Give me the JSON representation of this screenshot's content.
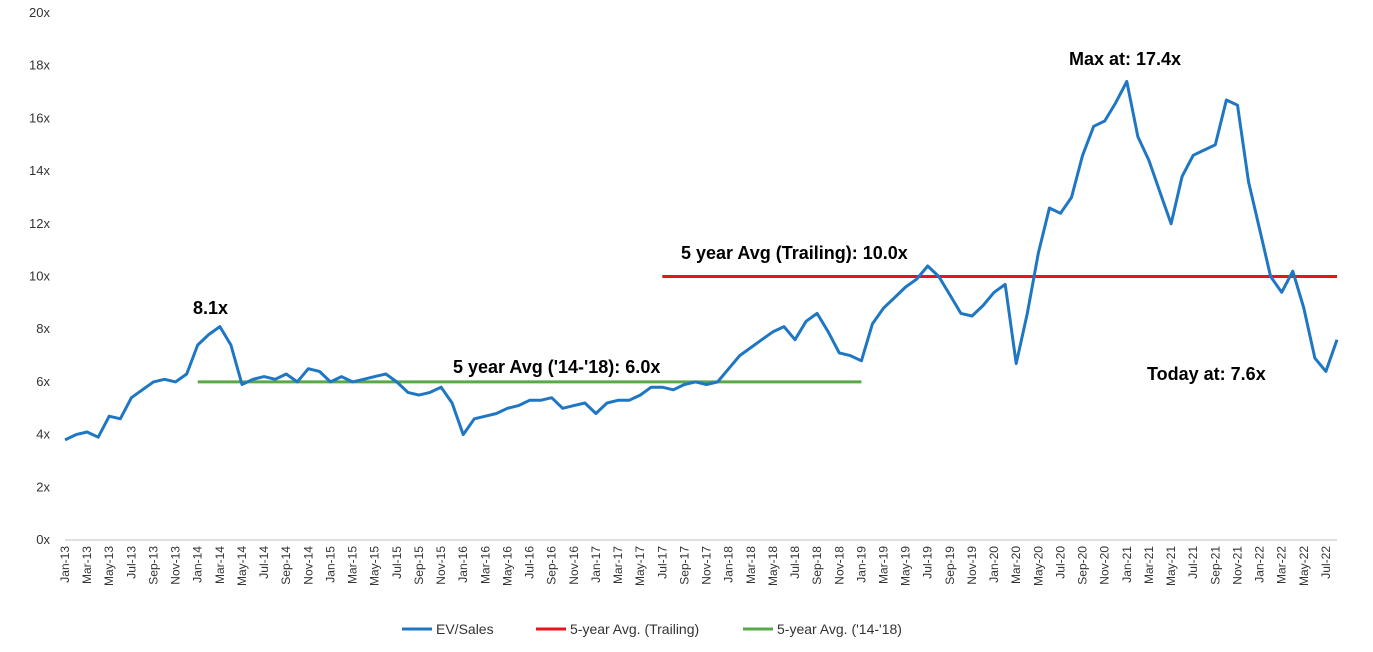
{
  "colors": {
    "ev_sales": "#1f77c4",
    "trailing": "#e8131b",
    "avg_14_18": "#5aa84a"
  },
  "chart_data": {
    "type": "line",
    "ylim": [
      0,
      20
    ],
    "yticks": [
      "0x",
      "2x",
      "4x",
      "6x",
      "8x",
      "10x",
      "12x",
      "14x",
      "16x",
      "18x",
      "20x"
    ],
    "x_start": "2013-01",
    "x_end": "2022-08",
    "xticks": [
      "Jan-13",
      "Mar-13",
      "May-13",
      "Jul-13",
      "Sep-13",
      "Nov-13",
      "Jan-14",
      "Mar-14",
      "May-14",
      "Jul-14",
      "Sep-14",
      "Nov-14",
      "Jan-15",
      "Mar-15",
      "May-15",
      "Jul-15",
      "Sep-15",
      "Nov-15",
      "Jan-16",
      "Mar-16",
      "May-16",
      "Jul-16",
      "Sep-16",
      "Nov-16",
      "Jan-17",
      "Mar-17",
      "May-17",
      "Jul-17",
      "Sep-17",
      "Nov-17",
      "Jan-18",
      "Mar-18",
      "May-18",
      "Jul-18",
      "Sep-18",
      "Nov-18",
      "Jan-19",
      "Mar-19",
      "May-19",
      "Jul-19",
      "Sep-19",
      "Nov-19",
      "Jan-20",
      "Mar-20",
      "May-20",
      "Jul-20",
      "Sep-20",
      "Nov-20",
      "Jan-21",
      "Mar-21",
      "May-21",
      "Jul-21",
      "Sep-21",
      "Nov-21",
      "Jan-22",
      "Mar-22",
      "May-22",
      "Jul-22"
    ],
    "series": [
      {
        "name": "EV/Sales",
        "x": [
          "2013-01",
          "2013-02",
          "2013-03",
          "2013-04",
          "2013-05",
          "2013-06",
          "2013-07",
          "2013-08",
          "2013-09",
          "2013-10",
          "2013-11",
          "2013-12",
          "2014-01",
          "2014-02",
          "2014-03",
          "2014-04",
          "2014-05",
          "2014-06",
          "2014-07",
          "2014-08",
          "2014-09",
          "2014-10",
          "2014-11",
          "2014-12",
          "2015-01",
          "2015-02",
          "2015-03",
          "2015-04",
          "2015-05",
          "2015-06",
          "2015-07",
          "2015-08",
          "2015-09",
          "2015-10",
          "2015-11",
          "2015-12",
          "2016-01",
          "2016-02",
          "2016-03",
          "2016-04",
          "2016-05",
          "2016-06",
          "2016-07",
          "2016-08",
          "2016-09",
          "2016-10",
          "2016-11",
          "2016-12",
          "2017-01",
          "2017-02",
          "2017-03",
          "2017-04",
          "2017-05",
          "2017-06",
          "2017-07",
          "2017-08",
          "2017-09",
          "2017-10",
          "2017-11",
          "2017-12",
          "2018-01",
          "2018-02",
          "2018-03",
          "2018-04",
          "2018-05",
          "2018-06",
          "2018-07",
          "2018-08",
          "2018-09",
          "2018-10",
          "2018-11",
          "2018-12",
          "2019-01",
          "2019-02",
          "2019-03",
          "2019-04",
          "2019-05",
          "2019-06",
          "2019-07",
          "2019-08",
          "2019-09",
          "2019-10",
          "2019-11",
          "2019-12",
          "2020-01",
          "2020-02",
          "2020-03",
          "2020-04",
          "2020-05",
          "2020-06",
          "2020-07",
          "2020-08",
          "2020-09",
          "2020-10",
          "2020-11",
          "2020-12",
          "2021-01",
          "2021-02",
          "2021-03",
          "2021-04",
          "2021-05",
          "2021-06",
          "2021-07",
          "2021-08",
          "2021-09",
          "2021-10",
          "2021-11",
          "2021-12",
          "2022-01",
          "2022-02",
          "2022-03",
          "2022-04",
          "2022-05",
          "2022-06",
          "2022-07",
          "2022-08"
        ],
        "values": [
          3.8,
          4.0,
          4.1,
          3.9,
          4.7,
          4.6,
          5.4,
          5.7,
          6.0,
          6.1,
          6.0,
          6.3,
          7.4,
          7.8,
          8.1,
          7.4,
          5.9,
          6.1,
          6.2,
          6.1,
          6.3,
          6.0,
          6.5,
          6.4,
          6.0,
          6.2,
          6.0,
          6.1,
          6.2,
          6.3,
          6.0,
          5.6,
          5.5,
          5.6,
          5.8,
          5.2,
          4.0,
          4.6,
          4.7,
          4.8,
          5.0,
          5.1,
          5.3,
          5.3,
          5.4,
          5.0,
          5.1,
          5.2,
          4.8,
          5.2,
          5.3,
          5.3,
          5.5,
          5.8,
          5.8,
          5.7,
          5.9,
          6.0,
          5.9,
          6.0,
          6.5,
          7.0,
          7.3,
          7.6,
          7.9,
          8.1,
          7.6,
          8.3,
          8.6,
          7.9,
          7.1,
          7.0,
          6.8,
          8.2,
          8.8,
          9.2,
          9.6,
          9.9,
          10.4,
          10.0,
          9.3,
          8.6,
          8.5,
          8.9,
          9.4,
          9.7,
          6.7,
          8.6,
          10.9,
          12.6,
          12.4,
          13.0,
          14.6,
          15.7,
          15.9,
          16.6,
          17.4,
          15.3,
          14.4,
          13.2,
          12.0,
          13.8,
          14.6,
          14.8,
          15.0,
          16.7,
          16.5,
          13.6,
          11.8,
          10.0,
          9.4,
          10.2,
          8.8,
          6.9,
          6.4,
          7.6
        ]
      },
      {
        "name": "5-year Avg. (Trailing)",
        "x": [
          "2017-07",
          "2022-08"
        ],
        "values": [
          10.0,
          10.0
        ]
      },
      {
        "name": "5-year Avg. ('14-'18)",
        "x": [
          "2014-01",
          "2019-01"
        ],
        "values": [
          6.0,
          6.0
        ]
      }
    ],
    "annotations": {
      "peak_2014": "8.1x",
      "avg_14_18": "5 year Avg ('14-'18): 6.0x",
      "trailing": "5 year Avg (Trailing): 10.0x",
      "max": "Max at: 17.4x",
      "today": "Today at: 7.6x"
    },
    "legend_position": "bottom"
  }
}
